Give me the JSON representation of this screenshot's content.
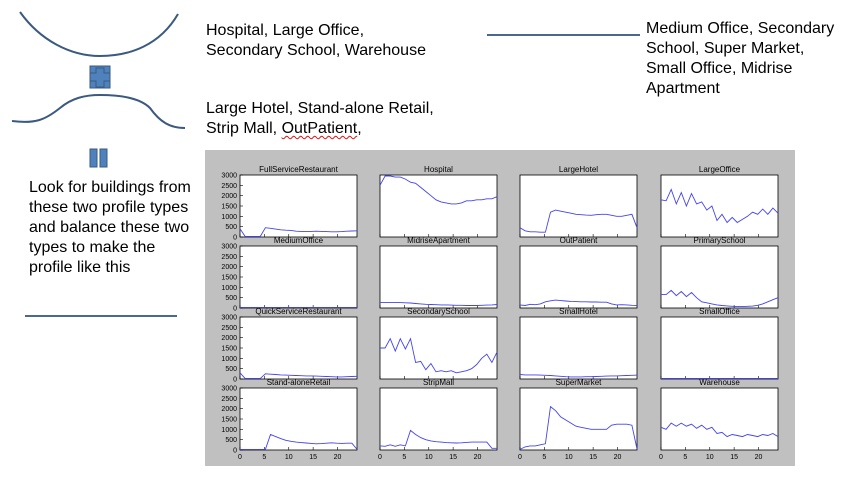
{
  "labels": {
    "group_a": "Hospital, Large Office,\nSecondary School, Warehouse",
    "group_b_line1": "Large Hotel, Stand-alone Retail,",
    "group_b_line2a": "Strip Mall, ",
    "group_b_line2b": "OutPatient",
    "group_b_line2c": ",",
    "group_c": "Medium Office, Secondary\nSchool, Super Market,\nSmall Office, Midrise\nApartment",
    "instruction": "Look for buildings from\nthese two profile types\nand balance these two\ntypes to make the\nprofile like this"
  },
  "colors": {
    "shape_fill": "#4f81bd",
    "curve": "#3a5a80",
    "line_series": "#4444ee",
    "panel_bg": "#c0c0c0"
  },
  "chart_data": {
    "type": "line",
    "x_ticks": [
      "0",
      "5",
      "10",
      "15",
      "20"
    ],
    "xlim": [
      0,
      24
    ],
    "ylim": [
      0,
      3000
    ],
    "y_ticks": [
      "0",
      "500",
      "1000",
      "1500",
      "2000",
      "2500",
      "3000"
    ],
    "panels": [
      {
        "title": "FullServiceRestaurant",
        "values": [
          400,
          30,
          30,
          30,
          30,
          450,
          420,
          380,
          350,
          330,
          320,
          280,
          270,
          260,
          270,
          280,
          270,
          260,
          250,
          250,
          260,
          280,
          290,
          300
        ]
      },
      {
        "title": "Hospital",
        "values": [
          2500,
          2950,
          2950,
          2900,
          2900,
          2800,
          2650,
          2600,
          2400,
          2200,
          2000,
          1800,
          1700,
          1650,
          1600,
          1600,
          1650,
          1750,
          1750,
          1800,
          1800,
          1850,
          1850,
          1950
        ]
      },
      {
        "title": "LargeHotel",
        "values": [
          450,
          300,
          250,
          250,
          230,
          230,
          1200,
          1300,
          1250,
          1200,
          1150,
          1100,
          1080,
          1060,
          1050,
          1080,
          1100,
          1100,
          1050,
          1000,
          1000,
          1050,
          1100,
          450
        ]
      },
      {
        "title": "LargeOffice",
        "values": [
          1800,
          1750,
          2300,
          1600,
          2150,
          1500,
          2100,
          1600,
          1700,
          1300,
          1500,
          800,
          1100,
          700,
          950,
          700,
          850,
          1000,
          1200,
          1100,
          1350,
          1100,
          1400,
          1150
        ]
      },
      {
        "title": "MediumOffice",
        "values": [
          30,
          30,
          30,
          30,
          30,
          30,
          30,
          30,
          30,
          30,
          30,
          30,
          30,
          30,
          30,
          30,
          30,
          30,
          30,
          30,
          30,
          30,
          30,
          30
        ]
      },
      {
        "title": "MidriseApartment",
        "values": [
          270,
          270,
          270,
          270,
          260,
          250,
          240,
          220,
          200,
          180,
          170,
          160,
          150,
          150,
          140,
          130,
          130,
          120,
          120,
          120,
          130,
          140,
          150,
          170
        ]
      },
      {
        "title": "OutPatient",
        "values": [
          150,
          120,
          180,
          160,
          200,
          300,
          350,
          380,
          360,
          340,
          320,
          310,
          300,
          300,
          290,
          290,
          280,
          280,
          200,
          150,
          160,
          150,
          130,
          120
        ]
      },
      {
        "title": "PrimarySchool",
        "values": [
          650,
          650,
          850,
          600,
          800,
          550,
          750,
          500,
          300,
          250,
          200,
          150,
          120,
          100,
          80,
          70,
          70,
          80,
          90,
          130,
          200,
          300,
          400,
          500
        ]
      },
      {
        "title": "QuickServiceRestaurant",
        "values": [
          300,
          30,
          30,
          30,
          30,
          250,
          230,
          220,
          200,
          190,
          180,
          170,
          160,
          150,
          150,
          140,
          130,
          120,
          110,
          100,
          100,
          110,
          120,
          130
        ]
      },
      {
        "title": "SecondarySchool",
        "values": [
          1500,
          1500,
          1950,
          1350,
          1950,
          1450,
          1950,
          800,
          850,
          450,
          750,
          350,
          400,
          350,
          400,
          300,
          350,
          400,
          500,
          700,
          1000,
          1200,
          800,
          1300
        ]
      },
      {
        "title": "SmallHotel",
        "values": [
          220,
          200,
          200,
          200,
          190,
          180,
          170,
          150,
          130,
          110,
          100,
          100,
          100,
          110,
          110,
          120,
          130,
          140,
          150,
          150,
          160,
          170,
          180,
          190
        ]
      },
      {
        "title": "SmallOffice",
        "values": [
          30,
          30,
          30,
          30,
          30,
          30,
          30,
          30,
          30,
          30,
          30,
          30,
          30,
          30,
          30,
          30,
          30,
          30,
          30,
          30,
          30,
          30,
          30,
          30
        ]
      },
      {
        "title": "Stand-aloneRetail",
        "values": [
          30,
          30,
          30,
          30,
          30,
          30,
          750,
          650,
          550,
          470,
          420,
          380,
          360,
          340,
          320,
          300,
          310,
          330,
          350,
          330,
          320,
          330,
          330,
          30
        ]
      },
      {
        "title": "StripMall",
        "values": [
          200,
          180,
          250,
          180,
          250,
          200,
          950,
          750,
          600,
          500,
          440,
          400,
          380,
          360,
          350,
          340,
          350,
          370,
          380,
          380,
          380,
          380,
          80,
          80
        ]
      },
      {
        "title": "SuperMarket",
        "values": [
          30,
          150,
          200,
          200,
          250,
          300,
          2100,
          1900,
          1600,
          1450,
          1300,
          1150,
          1100,
          1050,
          1000,
          1000,
          1000,
          1000,
          1200,
          1250,
          1250,
          1250,
          1200,
          50
        ]
      },
      {
        "title": "Warehouse",
        "values": [
          1100,
          1000,
          1300,
          1150,
          1300,
          1150,
          1250,
          1050,
          1200,
          1000,
          1100,
          800,
          850,
          650,
          750,
          700,
          650,
          750,
          700,
          650,
          750,
          700,
          800,
          650
        ]
      }
    ]
  }
}
